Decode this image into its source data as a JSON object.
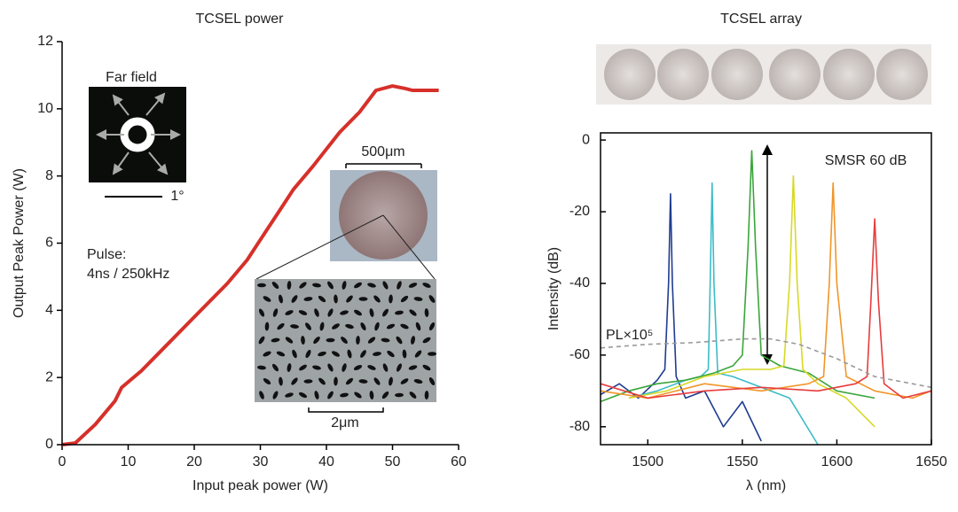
{
  "chart_data": [
    {
      "type": "line",
      "title": "TCSEL power",
      "xlabel": "Input peak power (W)",
      "ylabel": "Output Peak Power (W)",
      "x": [
        0,
        2,
        5,
        8,
        9,
        12,
        15,
        20,
        25,
        28,
        30,
        33,
        35,
        38,
        40,
        42,
        45,
        47.5,
        50,
        52,
        53,
        57
      ],
      "series": [
        {
          "color": "#d6302a",
          "values": [
            0,
            0.05,
            0.6,
            1.3,
            1.7,
            2.2,
            2.8,
            3.8,
            4.8,
            5.5,
            6.1,
            7.0,
            7.6,
            8.3,
            8.8,
            9.3,
            9.9,
            10.55,
            10.68,
            10.6,
            10.55,
            10.55
          ]
        }
      ],
      "xlim": [
        0,
        60
      ],
      "ylim": [
        0,
        12
      ],
      "xticks": [
        0,
        10,
        20,
        30,
        40,
        50,
        60
      ],
      "yticks": [
        0,
        2,
        4,
        6,
        8,
        10,
        12
      ],
      "annotations": [
        "Far field",
        "1°",
        "Pulse:",
        "4ns / 250kHz",
        "500μm",
        "2μm"
      ]
    },
    {
      "type": "line",
      "title": "TCSEL array",
      "xlabel": "λ (nm)",
      "ylabel": "Intensity (dB)",
      "series": [
        {
          "color": "#1f3c8f",
          "x": [
            1475,
            1485,
            1495,
            1505,
            1509,
            1511,
            1512,
            1513,
            1515,
            1520,
            1530,
            1540,
            1550,
            1560
          ],
          "values": [
            -71,
            -68,
            -72,
            -67,
            -64,
            -40,
            -15,
            -40,
            -66,
            -72,
            -70,
            -80,
            -73,
            -84
          ]
        },
        {
          "color": "#3cbcc8",
          "x": [
            1490,
            1505,
            1520,
            1528,
            1532,
            1533,
            1534,
            1535,
            1537,
            1545,
            1560,
            1575,
            1590
          ],
          "values": [
            -72,
            -70,
            -67,
            -66,
            -64,
            -40,
            -12,
            -40,
            -65,
            -66,
            -69,
            -72,
            -85
          ]
        },
        {
          "color": "#3aa63a",
          "x": [
            1475,
            1490,
            1505,
            1520,
            1535,
            1545,
            1550,
            1553,
            1555,
            1557,
            1560,
            1570,
            1585,
            1600,
            1620
          ],
          "values": [
            -73,
            -70,
            -68,
            -67,
            -65,
            -63,
            -60,
            -30,
            -3,
            -30,
            -60,
            -63,
            -65,
            -70,
            -72
          ]
        },
        {
          "color": "#d8d828",
          "x": [
            1490,
            1510,
            1530,
            1550,
            1565,
            1572,
            1575,
            1577,
            1579,
            1582,
            1590,
            1605,
            1620
          ],
          "values": [
            -72,
            -70,
            -66,
            -64,
            -64,
            -63,
            -40,
            -10,
            -40,
            -64,
            -68,
            -72,
            -80
          ]
        },
        {
          "color": "#f0962a",
          "x": [
            1475,
            1500,
            1530,
            1560,
            1585,
            1593,
            1596,
            1598,
            1600,
            1605,
            1620,
            1640,
            1650
          ],
          "values": [
            -70,
            -72,
            -68,
            -70,
            -68,
            -66,
            -40,
            -12,
            -40,
            -66,
            -70,
            -72,
            -70
          ]
        },
        {
          "color": "#e83c3c",
          "x": [
            1475,
            1500,
            1530,
            1560,
            1590,
            1610,
            1616,
            1618,
            1620,
            1622,
            1625,
            1635,
            1650
          ],
          "values": [
            -68,
            -72,
            -70,
            -69,
            -70,
            -68,
            -66,
            -45,
            -22,
            -45,
            -68,
            -72,
            -70
          ]
        },
        {
          "name": "PL×10⁵",
          "color": "#9a9a9a",
          "dashed": true,
          "x": [
            1475,
            1500,
            1525,
            1550,
            1565,
            1580,
            1600,
            1620,
            1650
          ],
          "values": [
            -58,
            -57,
            -56.5,
            -55.5,
            -55.5,
            -57,
            -61,
            -66,
            -69
          ]
        }
      ],
      "xlim": [
        1475,
        1650
      ],
      "ylim": [
        -85,
        2
      ],
      "xticks": [
        1500,
        1550,
        1600,
        1650
      ],
      "yticks": [
        0,
        -20,
        -40,
        -60,
        -80
      ],
      "annotations": [
        "SMSR 60 dB"
      ]
    }
  ]
}
